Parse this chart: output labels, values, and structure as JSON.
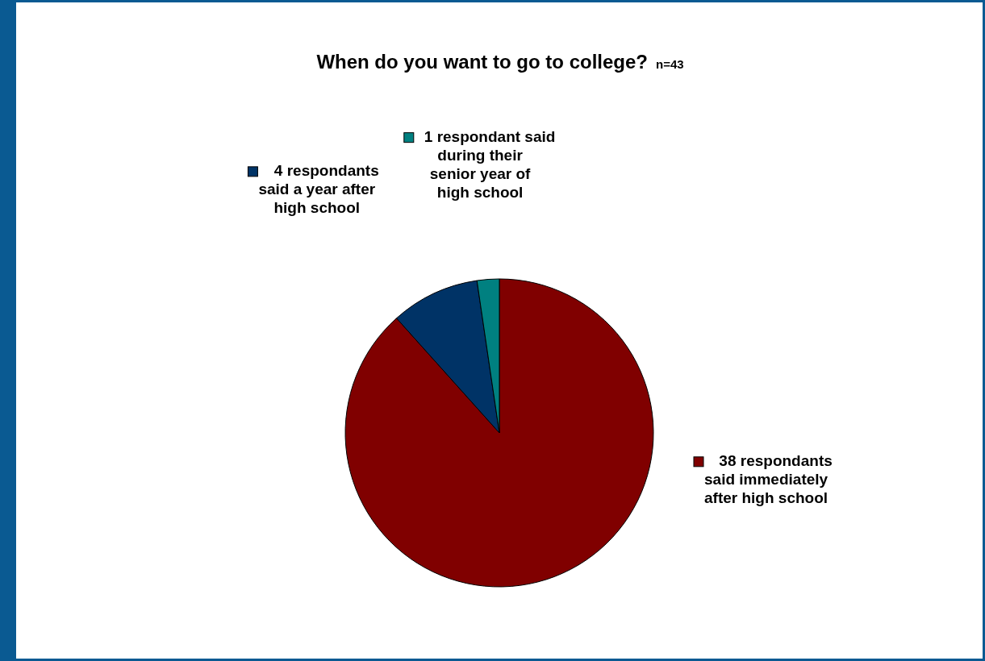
{
  "chart_data": {
    "type": "pie",
    "title": "When do you want to go to college?",
    "subtitle": "n=43",
    "categories": [
      "38 respondants said immediately after high school",
      "4 respondants said a year after high school",
      "1 respondant said during their senior year of high school"
    ],
    "values": [
      38,
      4,
      1
    ],
    "colors": [
      "#800000",
      "#003366",
      "#008080"
    ],
    "legend": "right"
  }
}
